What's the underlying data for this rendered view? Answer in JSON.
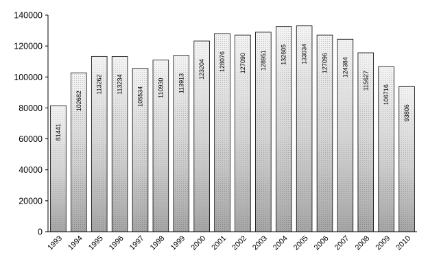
{
  "chart_data": {
    "type": "bar",
    "categories": [
      "1993",
      "1994",
      "1995",
      "1996",
      "1997",
      "1998",
      "1999",
      "2000",
      "2001",
      "2002",
      "2003",
      "2004",
      "2005",
      "2006",
      "2007",
      "2008",
      "2009",
      "2010"
    ],
    "values": [
      81441,
      102682,
      113262,
      113234,
      105534,
      110930,
      113913,
      123204,
      128076,
      127090,
      128951,
      132605,
      133034,
      127096,
      124384,
      115627,
      106716,
      93806
    ],
    "data_labels": [
      "81441",
      "102682",
      "113262",
      "113234",
      "105534",
      "110930",
      "113913",
      "123204",
      "128076",
      "127090",
      "128951",
      "132605",
      "133034",
      "127096",
      "124384",
      "115627",
      "106716",
      "93806"
    ],
    "ylim": [
      0,
      140000
    ],
    "yticks": [
      0,
      20000,
      40000,
      60000,
      80000,
      100000,
      120000,
      140000
    ],
    "ytick_labels": [
      "0",
      "20000",
      "40000",
      "60000",
      "80000",
      "100000",
      "120000",
      "140000"
    ],
    "grid": false,
    "legend": "none",
    "title": "",
    "xlabel": "",
    "ylabel": "",
    "colors": {
      "bar_top": "#f4f4f4",
      "bar_bottom": "#a6a6a6",
      "bar_stroke": "#000000",
      "axis": "#000000"
    }
  }
}
